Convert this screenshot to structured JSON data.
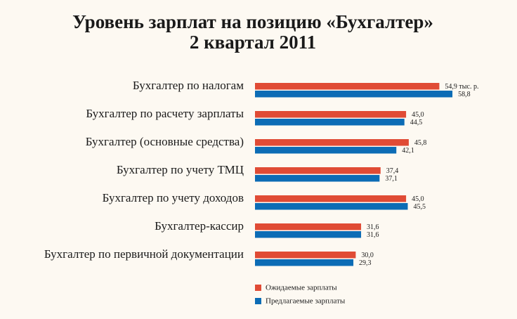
{
  "chart_data": {
    "type": "bar",
    "orientation": "horizontal",
    "title": "Уровень зарплат на позицию «Бухгалтер»",
    "subtitle": "2 квартал 2011",
    "categories": [
      "Бухгалтер по налогам",
      "Бухгалтер по расчету зарплаты",
      "Бухгалтер (основные средства)",
      "Бухгалтер по учету ТМЦ",
      "Бухгалтер по учету доходов",
      "Бухгалтер-кассир",
      "Бухгалтер по первичной документации"
    ],
    "series": [
      {
        "name": "Ожидаемые зарплаты",
        "color": "#e04b35",
        "values": [
          54.9,
          45.0,
          45.8,
          37.4,
          45.0,
          31.6,
          30.0
        ],
        "value_labels": [
          "54,9 тыс. р.",
          "45,0",
          "45,8",
          "37,4",
          "45,0",
          "31,6",
          "30,0"
        ]
      },
      {
        "name": "Предлагаемые зарплаты",
        "color": "#0c6cb5",
        "values": [
          58.8,
          44.5,
          42.1,
          37.1,
          45.5,
          31.6,
          29.3
        ],
        "value_labels": [
          "58,8",
          "44,5",
          "42,1",
          "37,1",
          "45,5",
          "31,6",
          "29,3"
        ]
      }
    ],
    "legend": "bottom-right"
  }
}
